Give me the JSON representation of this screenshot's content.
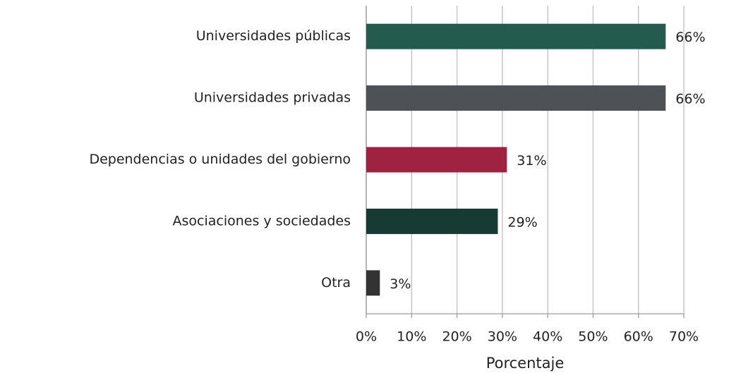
{
  "chart_data": {
    "type": "bar",
    "orientation": "horizontal",
    "categories": [
      "Universidades públicas",
      "Universidades privadas",
      "Dependencias o unidades del gobierno",
      "Asociaciones y sociedades",
      "Otra"
    ],
    "values": [
      66,
      66,
      31,
      29,
      3
    ],
    "value_labels": [
      "66%",
      "66%",
      "31%",
      "29%",
      "3%"
    ],
    "colors": [
      "#235b4e",
      "#4e5256",
      "#9f2241",
      "#173a32",
      "#333333"
    ],
    "xlabel": "Porcentaje",
    "xlim": [
      0,
      70
    ],
    "xticks": [
      {
        "value": 0,
        "label": "0%"
      },
      {
        "value": 10,
        "label": "10%"
      },
      {
        "value": 20,
        "label": "20%"
      },
      {
        "value": 30,
        "label": "30%"
      },
      {
        "value": 40,
        "label": "40%"
      },
      {
        "value": 50,
        "label": "50%"
      },
      {
        "value": 60,
        "label": "60%"
      },
      {
        "value": 70,
        "label": "70%"
      }
    ],
    "grid": true
  }
}
